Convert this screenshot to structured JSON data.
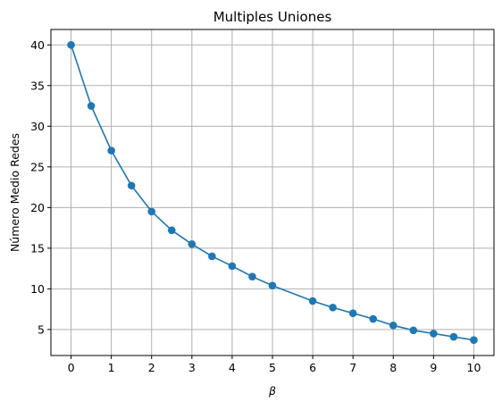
{
  "chart_data": {
    "type": "line",
    "title": "Multiples Uniones",
    "xlabel": "β",
    "ylabel": "Número Medio Redes",
    "x": [
      0,
      0.5,
      1,
      1.5,
      2,
      2.5,
      3,
      3.5,
      4,
      4.5,
      5,
      6,
      6.5,
      7,
      7.5,
      8,
      8.5,
      9,
      9.5,
      10
    ],
    "series": [
      {
        "values": [
          40.0,
          32.5,
          27.0,
          22.7,
          19.5,
          17.2,
          15.5,
          14.0,
          12.8,
          11.5,
          10.4,
          8.5,
          7.7,
          7.0,
          6.3,
          5.5,
          4.9,
          4.5,
          4.1,
          3.7
        ],
        "color": "#1f77b4",
        "marker": "circle"
      }
    ],
    "xlim": [
      -0.5,
      10.5
    ],
    "ylim": [
      1.8,
      41.9
    ],
    "xticks": [
      "0",
      "1",
      "2",
      "3",
      "4",
      "5",
      "6",
      "7",
      "8",
      "9",
      "10"
    ],
    "yticks": [
      "5",
      "10",
      "15",
      "20",
      "25",
      "30",
      "35",
      "40"
    ],
    "grid": true
  }
}
